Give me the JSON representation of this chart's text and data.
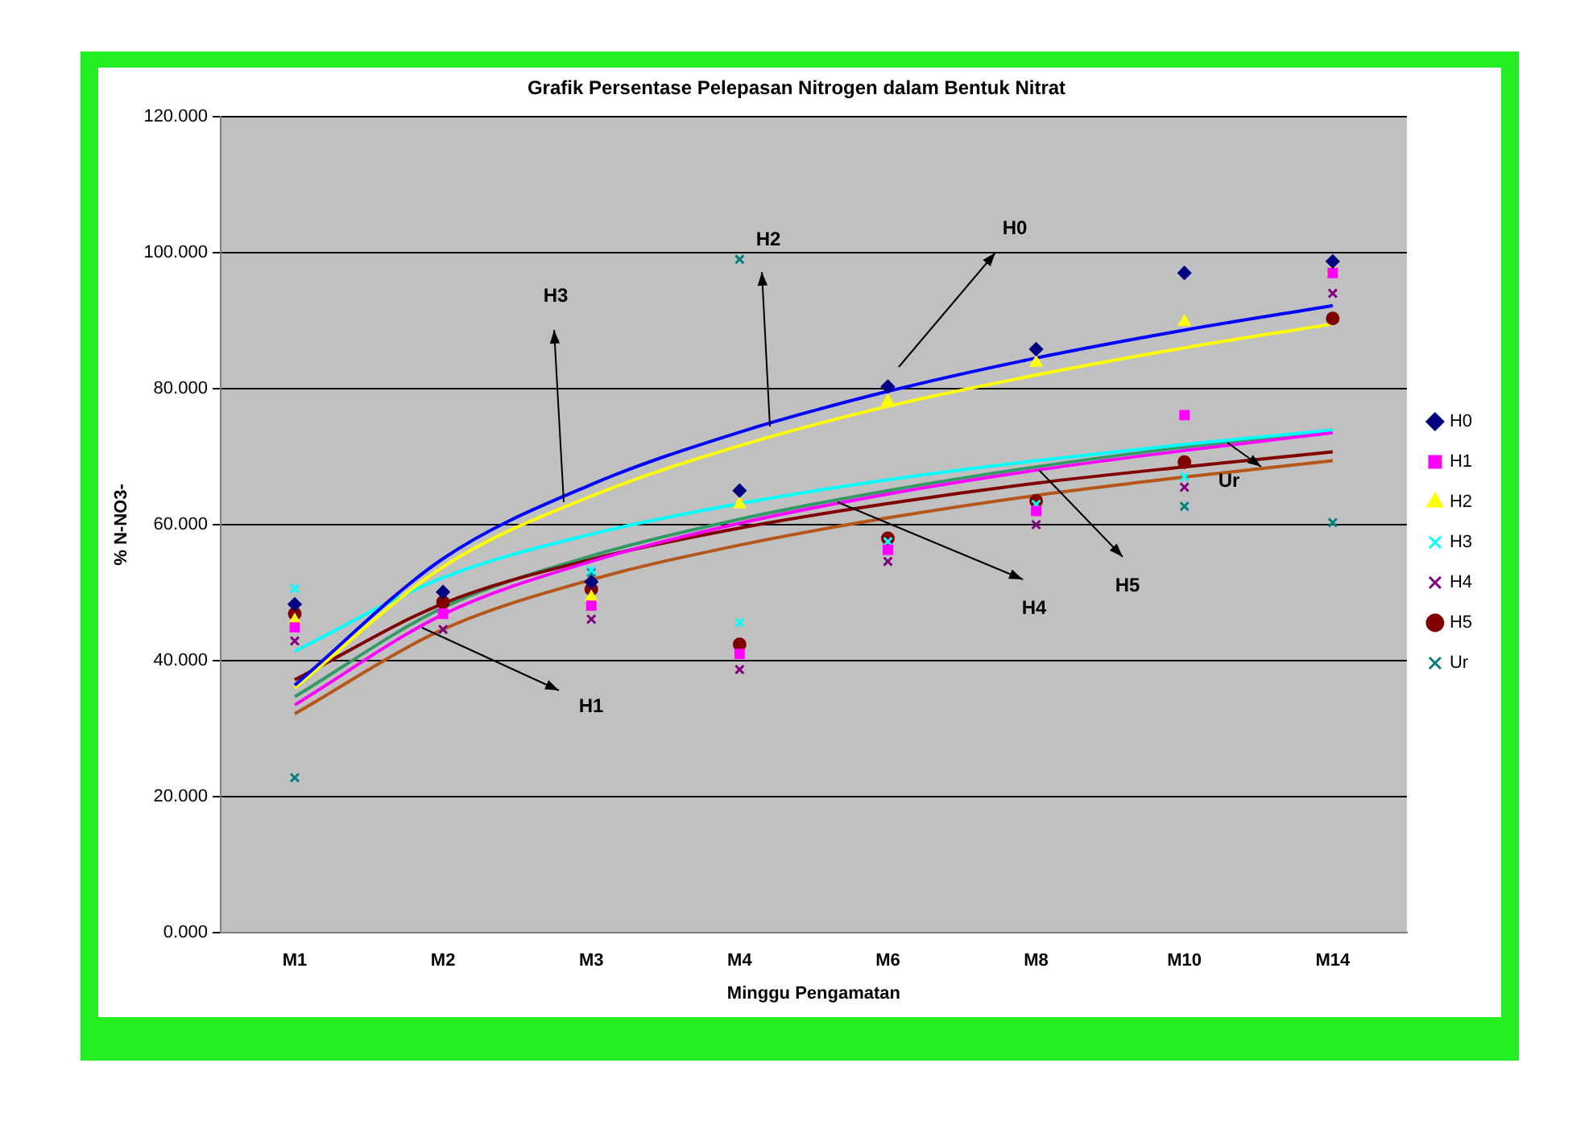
{
  "chart_data": {
    "type": "scatter",
    "title": "Grafik Persentase Pelepasan Nitrogen dalam Bentuk Nitrat",
    "xlabel": "Minggu Pengamatan",
    "ylabel": "% N-NO3-",
    "categories": [
      "M1",
      "M2",
      "M3",
      "M4",
      "M6",
      "M8",
      "M10",
      "M14"
    ],
    "ylim": [
      0,
      120
    ],
    "yticks": [
      {
        "value": 0,
        "label": "0.000"
      },
      {
        "value": 20,
        "label": "20.000"
      },
      {
        "value": 40,
        "label": "40.000"
      },
      {
        "value": 60,
        "label": "60.000"
      },
      {
        "value": 80,
        "label": "80.000"
      },
      {
        "value": 100,
        "label": "100.000"
      },
      {
        "value": 120,
        "label": "120.000"
      }
    ],
    "grid": "y",
    "legend": "right",
    "annotations": [
      "H3",
      "H2",
      "H0",
      "H1",
      "H4",
      "H5",
      "Ur"
    ],
    "series": [
      {
        "name": "H0",
        "marker": "diamond",
        "color": "#000080",
        "values": [
          48.3,
          50.1,
          51.6,
          65,
          80.3,
          85.8,
          97,
          98.7
        ]
      },
      {
        "name": "H1",
        "marker": "square",
        "color": "#ff00ff",
        "values": [
          44.9,
          46.9,
          48.1,
          41,
          56.3,
          62,
          76.1,
          97
        ]
      },
      {
        "name": "H2",
        "marker": "triangle",
        "color": "#ffff00",
        "values": [
          45.9,
          null,
          49.3,
          63,
          78.1,
          83.8,
          89.8,
          97.4
        ]
      },
      {
        "name": "H3",
        "marker": "cross",
        "color": "#00ffff",
        "values": [
          50.6,
          null,
          53.3,
          45.6,
          57.5,
          63,
          67,
          null
        ]
      },
      {
        "name": "H4",
        "marker": "cross",
        "color": "#800080",
        "values": [
          42.9,
          44.6,
          46.1,
          38.7,
          54.6,
          60,
          65.5,
          94
        ]
      },
      {
        "name": "H5",
        "marker": "circle",
        "color": "#800000",
        "values": [
          46.9,
          48.6,
          50.5,
          42.4,
          58,
          63.5,
          69.2,
          90.3
        ]
      },
      {
        "name": "Ur",
        "marker": "cross",
        "color": "#008080",
        "values": [
          22.8,
          null,
          53,
          99,
          null,
          null,
          62.7,
          60.3
        ]
      },
      {
        "type": "line",
        "color": "#0000ff",
        "values": [
          36.4,
          55,
          65.9,
          73.6,
          79.6,
          84.5,
          88.6,
          92.2
        ]
      },
      {
        "type": "line",
        "color": "#ff00ff",
        "values": [
          33.5,
          46.8,
          54.6,
          60.2,
          64.5,
          68,
          70.9,
          73.5
        ]
      },
      {
        "type": "line",
        "color": "#ffff00",
        "values": [
          36,
          53.8,
          64.2,
          71.6,
          77.4,
          82,
          86,
          89.5
        ]
      },
      {
        "type": "line",
        "color": "#00ffff",
        "values": [
          41.4,
          52.2,
          58.6,
          63.1,
          66.6,
          69.4,
          71.8,
          73.9
        ]
      },
      {
        "type": "line",
        "color": "#b5561a",
        "values": [
          32.2,
          44.6,
          51.9,
          57,
          61,
          64.3,
          67,
          69.4
        ]
      },
      {
        "type": "line",
        "color": "#800000",
        "values": [
          37.2,
          48.4,
          54.9,
          59.5,
          63.1,
          66.1,
          68.5,
          70.7
        ]
      },
      {
        "type": "line",
        "color": "#339966",
        "values": [
          34.7,
          47.8,
          55.4,
          60.8,
          65,
          68.5,
          71.4,
          73.9
        ]
      }
    ]
  }
}
